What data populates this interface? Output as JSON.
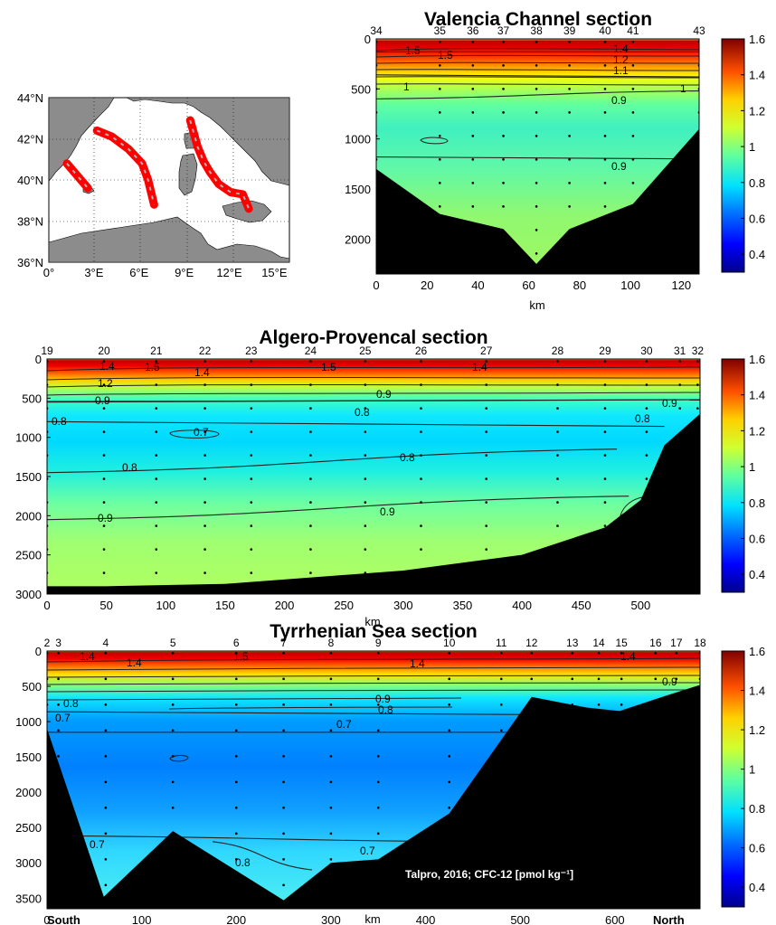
{
  "chart_data": [
    {
      "type": "map",
      "x_ticks": [
        "0°",
        "3°E",
        "6°E",
        "9°E",
        "12°E",
        "15°E"
      ],
      "y_ticks": [
        "44°N",
        "42°N",
        "40°N",
        "38°N",
        "36°N"
      ],
      "xlim": [
        0,
        16
      ],
      "ylim": [
        36,
        44
      ],
      "tracks": [
        {
          "lon": [
            1.2,
            1.9,
            2.6
          ],
          "lat": [
            40.8,
            40.2,
            39.6
          ]
        },
        {
          "lon": [
            3.2,
            4.2,
            5.3,
            6.2,
            6.6,
            6.8,
            7.0
          ],
          "lat": [
            42.4,
            42.1,
            41.5,
            40.8,
            40.0,
            39.4,
            38.8
          ]
        },
        {
          "lon": [
            9.4,
            9.9,
            10.3,
            10.7,
            11.3,
            12.1,
            12.9,
            13.3
          ],
          "lat": [
            42.9,
            41.6,
            40.9,
            40.4,
            39.8,
            39.4,
            39.3,
            38.6
          ]
        }
      ]
    },
    {
      "type": "section",
      "title": "Valencia Channel section",
      "xlabel": "km",
      "ylabel": "",
      "xlim": [
        0,
        127
      ],
      "ylim": [
        2350,
        0
      ],
      "x_ticks": [
        "0",
        "20",
        "40",
        "60",
        "80",
        "100",
        "120"
      ],
      "y_ticks": [
        "0",
        "500",
        "1000",
        "1500",
        "2000"
      ],
      "stations": [
        {
          "id": "34",
          "km": 0
        },
        {
          "id": "35",
          "km": 25
        },
        {
          "id": "36",
          "km": 38
        },
        {
          "id": "37",
          "km": 50
        },
        {
          "id": "38",
          "km": 63
        },
        {
          "id": "39",
          "km": 76
        },
        {
          "id": "40",
          "km": 90
        },
        {
          "id": "41",
          "km": 101
        },
        {
          "id": "43",
          "km": 127
        }
      ],
      "bathymetry_km": [
        0,
        25,
        50,
        63,
        76,
        101,
        127
      ],
      "bathymetry_depth_m": [
        1300,
        1750,
        1900,
        2250,
        1900,
        1650,
        900
      ],
      "contours": [
        {
          "level": "1.5",
          "km": [
            0,
            127
          ],
          "depth": [
            130,
            130
          ]
        },
        {
          "level": "1",
          "km": [
            0,
            127
          ],
          "depth": [
            360,
            380
          ]
        },
        {
          "level": "0.9",
          "km": [
            0,
            127
          ],
          "depth": [
            600,
            520
          ]
        },
        {
          "level": "0.9",
          "km": [
            0,
            127
          ],
          "depth": [
            1180,
            1200
          ]
        }
      ],
      "contour_labels": [
        "1.5",
        "1.5",
        "1.4",
        "1.2",
        "1.1",
        "1",
        "1",
        "0.9",
        "0.9"
      ],
      "colorbar": {
        "min": 0.3,
        "max": 1.6,
        "ticks": [
          "1.6",
          "1.4",
          "1.2",
          "1",
          "0.8",
          "0.6",
          "0.4"
        ]
      }
    },
    {
      "type": "section",
      "title": "Algero-Provencal section",
      "xlabel": "km",
      "ylabel": "",
      "xlim": [
        0,
        550
      ],
      "ylim": [
        3000,
        0
      ],
      "x_ticks": [
        "0",
        "50",
        "100",
        "150",
        "200",
        "250",
        "300",
        "350",
        "400",
        "450",
        "500"
      ],
      "y_ticks": [
        "0",
        "500",
        "1000",
        "1500",
        "2000",
        "2500",
        "3000"
      ],
      "stations": [
        {
          "id": "19",
          "km": 0
        },
        {
          "id": "20",
          "km": 48
        },
        {
          "id": "21",
          "km": 92
        },
        {
          "id": "22",
          "km": 133
        },
        {
          "id": "23",
          "km": 172
        },
        {
          "id": "24",
          "km": 222
        },
        {
          "id": "25",
          "km": 268
        },
        {
          "id": "26",
          "km": 315
        },
        {
          "id": "27",
          "km": 370
        },
        {
          "id": "28",
          "km": 430
        },
        {
          "id": "29",
          "km": 470
        },
        {
          "id": "30",
          "km": 505
        },
        {
          "id": "31",
          "km": 533
        },
        {
          "id": "32",
          "km": 548
        }
      ],
      "bathymetry_km": [
        0,
        50,
        150,
        300,
        400,
        470,
        500,
        520,
        550
      ],
      "bathymetry_depth_m": [
        2900,
        2900,
        2870,
        2700,
        2500,
        2150,
        1800,
        1100,
        700
      ],
      "contours": [
        {
          "level": "0.9",
          "km": [
            0,
            550
          ],
          "depth": [
            550,
            520
          ]
        },
        {
          "level": "0.8",
          "km": [
            0,
            520
          ],
          "depth": [
            800,
            860
          ]
        },
        {
          "level": "0.8",
          "km": [
            0,
            480
          ],
          "depth": [
            1450,
            1150
          ]
        },
        {
          "level": "0.9",
          "km": [
            0,
            490
          ],
          "depth": [
            2050,
            1750
          ]
        }
      ],
      "contour_labels": [
        "1.4",
        "1.5",
        "1.4",
        "1.5",
        "1.4",
        "1.2",
        "0.9",
        "0.9",
        "0.8",
        "0.8",
        "0.8",
        "0.7",
        "0.8",
        "0.8",
        "0.9",
        "0.9",
        "0.9"
      ],
      "colorbar": {
        "min": 0.3,
        "max": 1.6,
        "ticks": [
          "1.6",
          "1.4",
          "1.2",
          "1",
          "0.8",
          "0.6",
          "0.4"
        ]
      }
    },
    {
      "type": "section",
      "title": "Tyrrhenian Sea section",
      "xlabel": "km",
      "ylabel": "",
      "xlim": [
        0,
        690
      ],
      "ylim": [
        3650,
        0
      ],
      "x_ticks": [
        "0",
        "100",
        "200",
        "300",
        "400",
        "500",
        "600"
      ],
      "y_ticks": [
        "0",
        "500",
        "1000",
        "1500",
        "2000",
        "2500",
        "3000",
        "3500"
      ],
      "x_end_labels": {
        "left": "South",
        "right": "North"
      },
      "annotation": "Talpro, 2016; CFC-12 [pmol kg⁻¹]",
      "stations": [
        {
          "id": "2",
          "km": 0
        },
        {
          "id": "3",
          "km": 12
        },
        {
          "id": "4",
          "km": 62
        },
        {
          "id": "5",
          "km": 133
        },
        {
          "id": "6",
          "km": 200
        },
        {
          "id": "7",
          "km": 250
        },
        {
          "id": "8",
          "km": 300
        },
        {
          "id": "9",
          "km": 350
        },
        {
          "id": "10",
          "km": 425
        },
        {
          "id": "11",
          "km": 480
        },
        {
          "id": "12",
          "km": 512
        },
        {
          "id": "13",
          "km": 555
        },
        {
          "id": "14",
          "km": 583
        },
        {
          "id": "15",
          "km": 607
        },
        {
          "id": "16",
          "km": 643
        },
        {
          "id": "17",
          "km": 665
        },
        {
          "id": "18",
          "km": 690
        }
      ],
      "bathymetry_km": [
        0,
        60,
        133,
        250,
        300,
        350,
        425,
        512,
        570,
        605,
        650,
        690
      ],
      "bathymetry_depth_m": [
        1100,
        3480,
        2550,
        3530,
        3000,
        2950,
        2300,
        650,
        800,
        850,
        650,
        480
      ],
      "contours": [
        {
          "level": "0.8",
          "km": [
            0,
            510
          ],
          "depth": [
            860,
            900
          ]
        },
        {
          "level": "0.7",
          "km": [
            0,
            510
          ],
          "depth": [
            1150,
            1150
          ]
        },
        {
          "level": "0.7",
          "km": [
            30,
            440
          ],
          "depth": [
            2620,
            2700
          ]
        },
        {
          "level": "0.8",
          "km": [
            175,
            280
          ],
          "depth": [
            2700,
            3100
          ]
        }
      ],
      "contour_labels": [
        "1.4",
        "1.4",
        "1.5",
        "1.4",
        "1.4",
        "0.9",
        "0.8",
        "0.8",
        "0.7",
        "0.7",
        "0.7",
        "0.7",
        "0.8",
        "0.9"
      ],
      "colorbar": {
        "min": 0.3,
        "max": 1.6,
        "ticks": [
          "1.6",
          "1.4",
          "1.2",
          "1",
          "0.8",
          "0.6",
          "0.4"
        ]
      }
    }
  ]
}
